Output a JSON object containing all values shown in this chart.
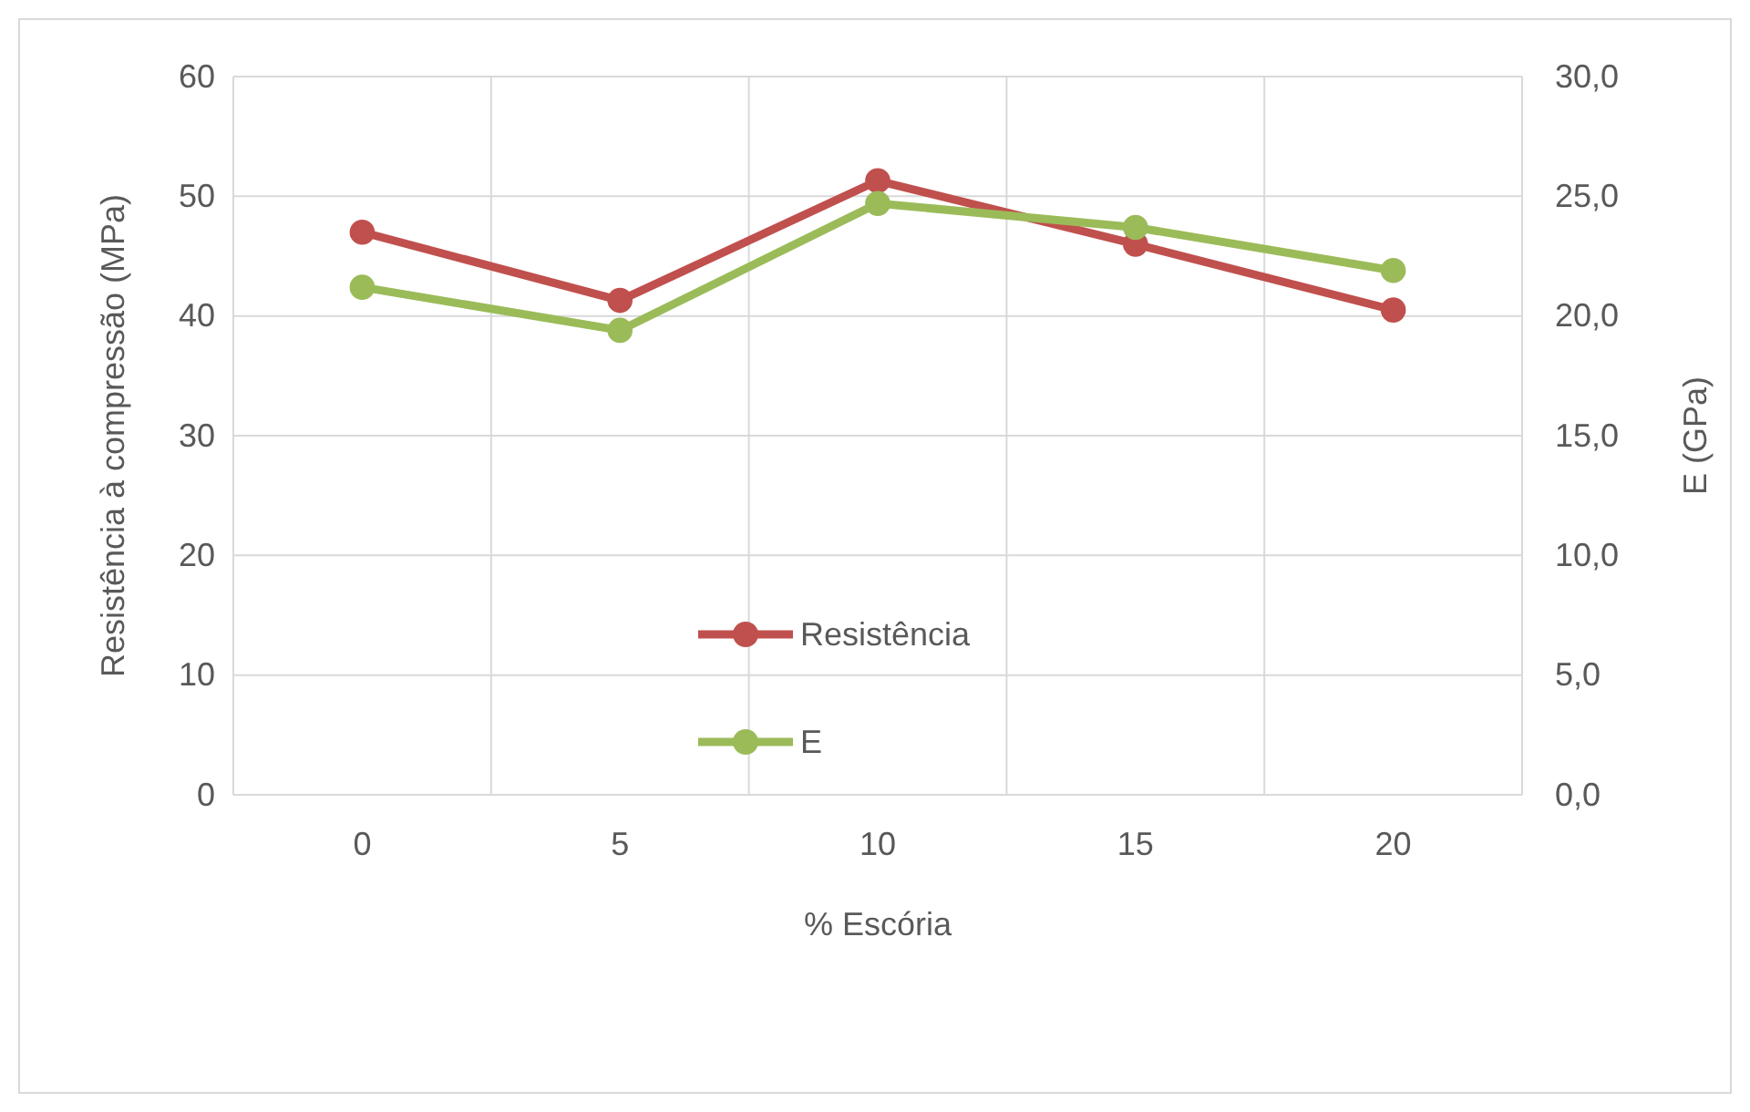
{
  "chart_data": {
    "type": "line",
    "xlabel": "% Escória",
    "ylabel": "Resistência à compressão (MPa)",
    "y2label": "E (GPa)",
    "categories": [
      "0",
      "5",
      "10",
      "15",
      "20"
    ],
    "series": [
      {
        "name": "Resistência",
        "color": "#c0504d",
        "values": [
          47.0,
          41.3,
          51.3,
          46.0,
          40.5
        ]
      },
      {
        "name": "E",
        "color": "#9bbb59",
        "values": [
          21.2,
          19.4,
          24.7,
          23.7,
          21.9
        ],
        "axis": "y2"
      }
    ],
    "ylim": [
      0,
      60
    ],
    "yticks": [
      0,
      10,
      20,
      30,
      40,
      50,
      60
    ],
    "y2lim": [
      0,
      30
    ],
    "y2ticks": [
      {
        "value": 0,
        "label": "0,0"
      },
      {
        "value": 5,
        "label": "5,0"
      },
      {
        "value": 10,
        "label": "10,0"
      },
      {
        "value": 15,
        "label": "15,0"
      },
      {
        "value": 20,
        "label": "20,0"
      },
      {
        "value": 25,
        "label": "25,0"
      },
      {
        "value": 30,
        "label": "30,0"
      }
    ],
    "grid": true,
    "legend": "bottom",
    "marker": "circle",
    "line_style": "solid"
  }
}
